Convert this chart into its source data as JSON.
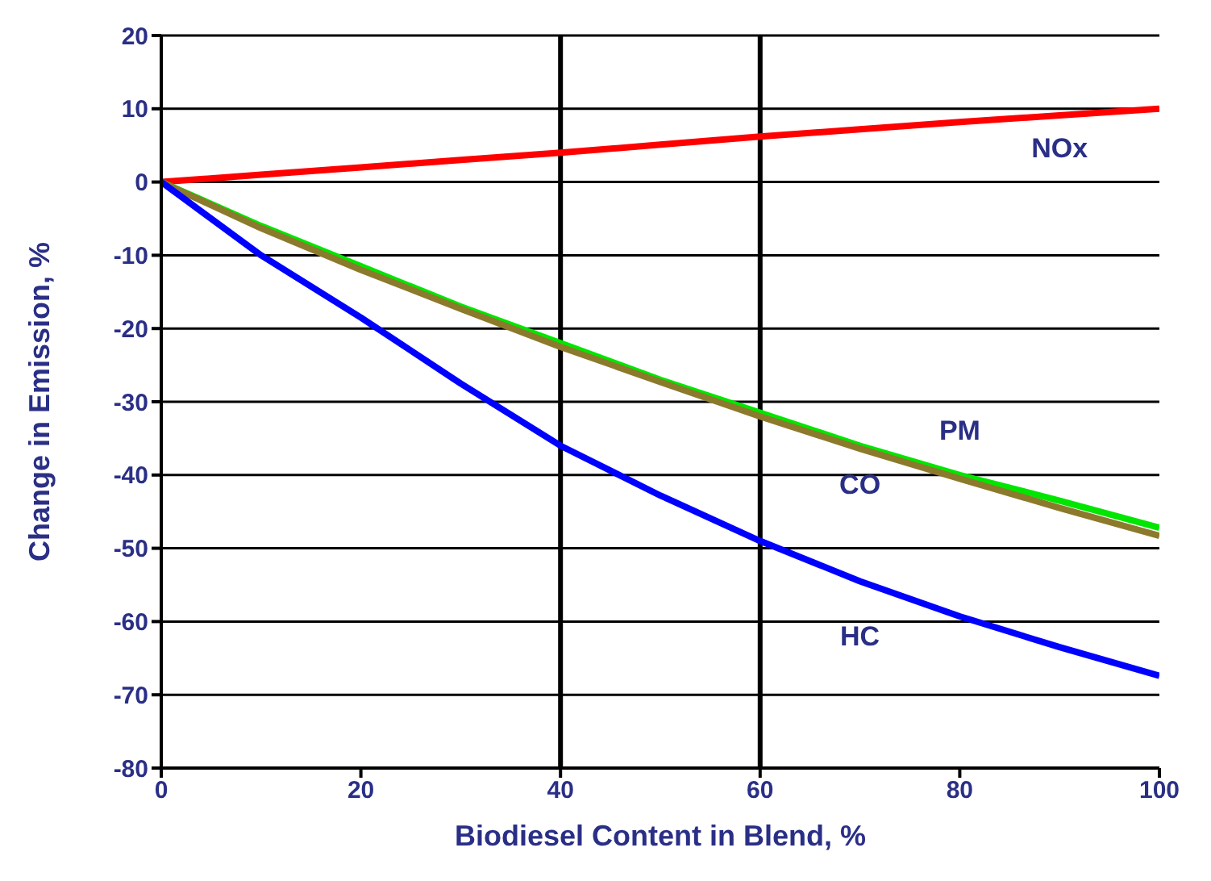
{
  "chart_data": {
    "type": "line",
    "xlabel": "Biodiesel Content in Blend, %",
    "ylabel": "Change in Emission, %",
    "x": [
      0,
      10,
      20,
      30,
      40,
      50,
      60,
      70,
      80,
      90,
      100
    ],
    "series": [
      {
        "name": "NOx",
        "color": "#ff0000",
        "values": [
          0,
          1,
          2,
          3,
          4,
          5.1,
          6.2,
          7.2,
          8.2,
          9.1,
          10
        ]
      },
      {
        "name": "PM",
        "color": "#00e600",
        "values": [
          0,
          -6,
          -11.5,
          -17,
          -22,
          -27,
          -31.5,
          -36,
          -40,
          -43.5,
          -47.2
        ]
      },
      {
        "name": "CO",
        "color": "#8c7a2c",
        "values": [
          0,
          -6.3,
          -12,
          -17.3,
          -22.5,
          -27.3,
          -32,
          -36.4,
          -40.5,
          -44.5,
          -48.3
        ]
      },
      {
        "name": "HC",
        "color": "#0000ff",
        "values": [
          0,
          -10,
          -18.5,
          -27.5,
          -36,
          -42.8,
          -49,
          -54.5,
          -59.3,
          -63.5,
          -67.4
        ]
      }
    ],
    "xlim": [
      0,
      100
    ],
    "xticks": [
      0,
      20,
      40,
      60,
      80,
      100
    ],
    "ylim": [
      -80,
      20
    ],
    "yticks": [
      -80,
      -70,
      -60,
      -50,
      -40,
      -30,
      -20,
      -10,
      0,
      10,
      20
    ],
    "grid": "y",
    "ref_lines": [
      {
        "axis": "x",
        "value": 40,
        "color": "#000000"
      },
      {
        "axis": "x",
        "value": 60,
        "color": "#000000"
      }
    ],
    "marker": "none",
    "line_style": "solid"
  }
}
